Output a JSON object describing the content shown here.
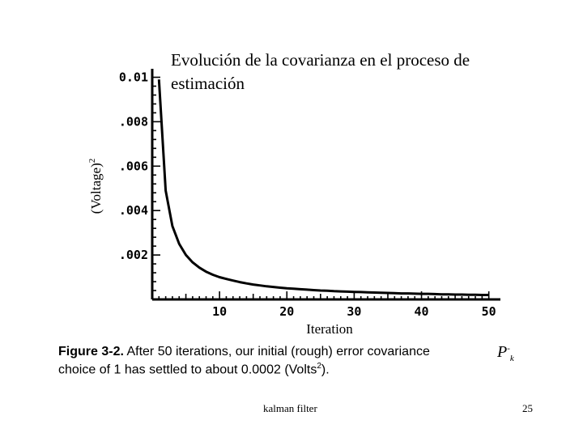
{
  "slide": {
    "title": "Evolución de la covarianza en el proceso de estimación",
    "footer": "kalman filter",
    "page_number": "25"
  },
  "caption": {
    "figure_label": "Figure 3-2.",
    "line1_text": "After 50 iterations, our initial (rough) error covariance",
    "line2_text": "choice of 1 has settled to about 0.0002 (Volts",
    "line2_sup": "2",
    "line2_end": ").",
    "symbol_main": "P",
    "symbol_sup": "-",
    "symbol_sub": "k"
  },
  "chart_data": {
    "type": "line",
    "title": "",
    "xlabel": "Iteration",
    "ylabel_base": "(Voltage)",
    "ylabel_sup": "2",
    "xlim": [
      0,
      51
    ],
    "ylim": [
      0,
      0.0102
    ],
    "x_ticks": [
      10,
      20,
      30,
      40,
      50
    ],
    "x_tick_labels": [
      "10",
      "20",
      "30",
      "40",
      "50"
    ],
    "y_ticks": [
      0.002,
      0.004,
      0.006,
      0.008,
      0.01
    ],
    "y_tick_labels": [
      ".002",
      ".004",
      ".006",
      ".008",
      "0.01"
    ],
    "grid": false,
    "series": [
      {
        "x": [
          1,
          2,
          3,
          4,
          5,
          6,
          7,
          8,
          9,
          10,
          11,
          12,
          13,
          14,
          15,
          16,
          17,
          18,
          19,
          20,
          21,
          22,
          23,
          24,
          25,
          26,
          27,
          28,
          29,
          30,
          31,
          32,
          33,
          34,
          35,
          36,
          37,
          38,
          39,
          40,
          41,
          42,
          43,
          44,
          45,
          46,
          47,
          48,
          49,
          50
        ],
        "values": [
          0.0099,
          0.0049,
          0.0033,
          0.0025,
          0.002,
          0.00167,
          0.00143,
          0.00125,
          0.00111,
          0.001,
          0.00092,
          0.00085,
          0.00078,
          0.00072,
          0.00067,
          0.00063,
          0.00059,
          0.00056,
          0.00053,
          0.0005,
          0.00048,
          0.00046,
          0.00044,
          0.00042,
          0.0004,
          0.00039,
          0.00037,
          0.00036,
          0.00035,
          0.00034,
          0.00033,
          0.00032,
          0.00031,
          0.0003,
          0.00029,
          0.00028,
          0.00027,
          0.00027,
          0.00026,
          0.00025,
          0.00025,
          0.00024,
          0.00023,
          0.00023,
          0.00022,
          0.00022,
          0.00021,
          0.00021,
          0.0002,
          0.0002
        ]
      }
    ]
  }
}
